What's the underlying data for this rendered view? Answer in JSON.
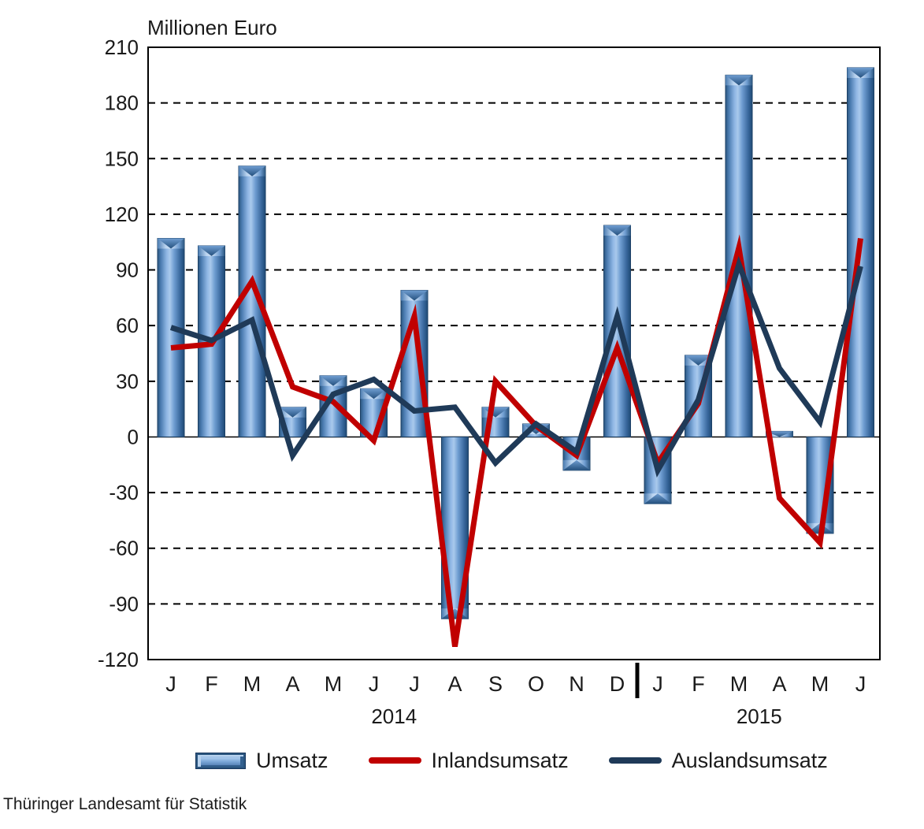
{
  "title": "Millionen Euro",
  "source": "Thüringer Landesamt für Statistik",
  "colors": {
    "bar_fill": "#4f81bd",
    "bar_highlight": "#a9c9ec",
    "bar_edge": "#1f4a75",
    "inland_line": "#c00000",
    "ausland_line": "#1f3a58",
    "grid": "#000000",
    "text": "#1a1a1a"
  },
  "chart_data": {
    "type": "combo",
    "title": "Millionen Euro",
    "xlabel": "",
    "ylabel": "Millionen Euro",
    "ylim": [
      -120,
      210
    ],
    "ytick_step": 30,
    "grid": "dashed-horizontal",
    "legend_position": "bottom",
    "categories": [
      "J",
      "F",
      "M",
      "A",
      "M",
      "J",
      "J",
      "A",
      "S",
      "O",
      "N",
      "D",
      "J",
      "F",
      "M",
      "A",
      "M",
      "J"
    ],
    "year_groups": [
      {
        "label": "2014",
        "from": 0,
        "to": 11
      },
      {
        "label": "2015",
        "from": 12,
        "to": 17
      }
    ],
    "series": [
      {
        "name": "Umsatz",
        "type": "bar",
        "color": "#4f81bd",
        "values": [
          107,
          103,
          146,
          16,
          33,
          26,
          79,
          -98,
          16,
          7,
          -18,
          114,
          -36,
          44,
          195,
          3,
          -52,
          199
        ]
      },
      {
        "name": "Inlandsumsatz",
        "type": "line",
        "color": "#c00000",
        "values": [
          48,
          50,
          84,
          27,
          19,
          -2,
          65,
          -113,
          30,
          6,
          -10,
          48,
          -14,
          18,
          102,
          -33,
          -57,
          107
        ]
      },
      {
        "name": "Auslandsumsatz",
        "type": "line",
        "color": "#1f3a58",
        "values": [
          59,
          52,
          63,
          -10,
          23,
          31,
          14,
          16,
          -14,
          7,
          -8,
          65,
          -18,
          20,
          93,
          37,
          8,
          92
        ]
      }
    ]
  },
  "legend": {
    "items": [
      {
        "label": "Umsatz",
        "swatch": "bar"
      },
      {
        "label": "Inlandsumsatz",
        "swatch": "line"
      },
      {
        "label": "Auslandsumsatz",
        "swatch": "line"
      }
    ]
  }
}
